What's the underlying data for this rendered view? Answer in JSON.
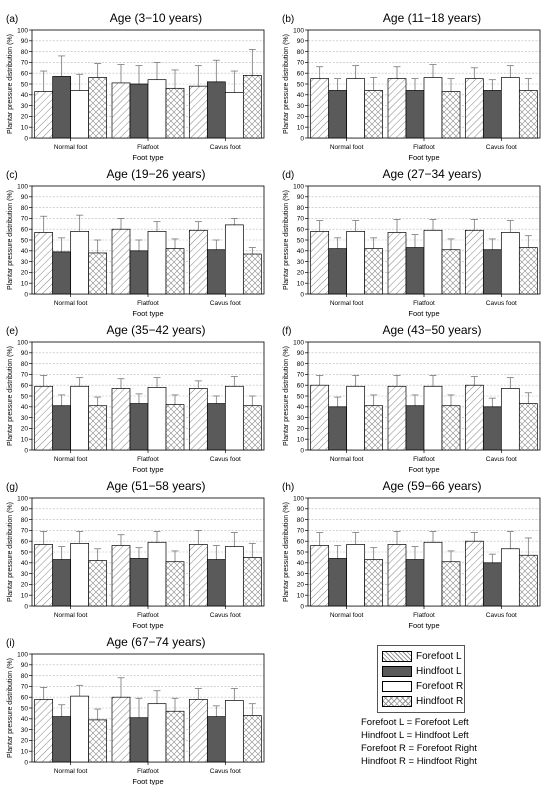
{
  "chart_data": [
    {
      "type": "bar",
      "panel_label": "(a)",
      "title": "Age (3−10 years)",
      "xlabel": "Foot type",
      "ylabel": "Plantar pressure distribution (%)",
      "ylim": [
        0,
        100
      ],
      "ytick_step": 10,
      "categories": [
        "Normal foot",
        "Flatfoot",
        "Cavus foot"
      ],
      "series": [
        {
          "name": "Forefoot L",
          "values": [
            43,
            51,
            48
          ],
          "errors": [
            19,
            17,
            19
          ]
        },
        {
          "name": "Hindfoot L",
          "values": [
            57,
            50,
            52
          ],
          "errors": [
            19,
            17,
            20
          ]
        },
        {
          "name": "Forefoot R",
          "values": [
            44,
            54,
            42
          ],
          "errors": [
            15,
            16,
            20
          ]
        },
        {
          "name": "Hindfoot R",
          "values": [
            56,
            46,
            58
          ],
          "errors": [
            13,
            17,
            24
          ]
        }
      ]
    },
    {
      "type": "bar",
      "panel_label": "(b)",
      "title": "Age (11−18 years)",
      "xlabel": "Foot type",
      "ylabel": "Plantar pressure distribution (%)",
      "ylim": [
        0,
        100
      ],
      "ytick_step": 10,
      "categories": [
        "Normal foot",
        "Flatfoot",
        "Cavus foot"
      ],
      "series": [
        {
          "name": "Forefoot L",
          "values": [
            55,
            55,
            55
          ],
          "errors": [
            11,
            11,
            10
          ]
        },
        {
          "name": "Hindfoot L",
          "values": [
            44,
            44,
            44
          ],
          "errors": [
            11,
            11,
            10
          ]
        },
        {
          "name": "Forefoot R",
          "values": [
            55,
            56,
            56
          ],
          "errors": [
            12,
            12,
            11
          ]
        },
        {
          "name": "Hindfoot R",
          "values": [
            44,
            43,
            44
          ],
          "errors": [
            12,
            12,
            11
          ]
        }
      ]
    },
    {
      "type": "bar",
      "panel_label": "(c)",
      "title": "Age (19−26 years)",
      "xlabel": "Foot type",
      "ylabel": "Plantar pressure distribution (%)",
      "ylim": [
        0,
        100
      ],
      "ytick_step": 10,
      "categories": [
        "Normal foot",
        "Flatfoot",
        "Cavus foot"
      ],
      "series": [
        {
          "name": "Forefoot L",
          "values": [
            57,
            60,
            59
          ],
          "errors": [
            15,
            10,
            8
          ]
        },
        {
          "name": "Hindfoot L",
          "values": [
            39,
            40,
            41
          ],
          "errors": [
            13,
            10,
            9
          ]
        },
        {
          "name": "Forefoot R",
          "values": [
            58,
            58,
            64
          ],
          "errors": [
            15,
            9,
            6
          ]
        },
        {
          "name": "Hindfoot R",
          "values": [
            38,
            42,
            37
          ],
          "errors": [
            12,
            9,
            6
          ]
        }
      ]
    },
    {
      "type": "bar",
      "panel_label": "(d)",
      "title": "Age (27−34 years)",
      "xlabel": "Foot type",
      "ylabel": "Plantar pressure distribution (%)",
      "ylim": [
        0,
        100
      ],
      "ytick_step": 10,
      "categories": [
        "Normal foot",
        "Flatfoot",
        "Cavus foot"
      ],
      "series": [
        {
          "name": "Forefoot L",
          "values": [
            58,
            57,
            59
          ],
          "errors": [
            10,
            12,
            10
          ]
        },
        {
          "name": "Hindfoot L",
          "values": [
            42,
            43,
            41
          ],
          "errors": [
            10,
            12,
            10
          ]
        },
        {
          "name": "Forefoot R",
          "values": [
            58,
            59,
            57
          ],
          "errors": [
            10,
            10,
            11
          ]
        },
        {
          "name": "Hindfoot R",
          "values": [
            42,
            41,
            43
          ],
          "errors": [
            10,
            10,
            11
          ]
        }
      ]
    },
    {
      "type": "bar",
      "panel_label": "(e)",
      "title": "Age (35−42 years)",
      "xlabel": "Foot type",
      "ylabel": "Plantar pressure distribution (%)",
      "ylim": [
        0,
        100
      ],
      "ytick_step": 10,
      "categories": [
        "Normal foot",
        "Flatfoot",
        "Cavus foot"
      ],
      "series": [
        {
          "name": "Forefoot L",
          "values": [
            59,
            57,
            57
          ],
          "errors": [
            10,
            9,
            7
          ]
        },
        {
          "name": "Hindfoot L",
          "values": [
            41,
            43,
            43
          ],
          "errors": [
            10,
            9,
            7
          ]
        },
        {
          "name": "Forefoot R",
          "values": [
            59,
            58,
            59
          ],
          "errors": [
            8,
            9,
            9
          ]
        },
        {
          "name": "Hindfoot R",
          "values": [
            41,
            42,
            41
          ],
          "errors": [
            8,
            9,
            9
          ]
        }
      ]
    },
    {
      "type": "bar",
      "panel_label": "(f)",
      "title": "Age (43−50 years)",
      "xlabel": "Foot type",
      "ylabel": "Plantar pressure distribution (%)",
      "ylim": [
        0,
        100
      ],
      "ytick_step": 10,
      "categories": [
        "Normal foot",
        "Flatfoot",
        "Cavus foot"
      ],
      "series": [
        {
          "name": "Forefoot L",
          "values": [
            60,
            59,
            60
          ],
          "errors": [
            9,
            10,
            8
          ]
        },
        {
          "name": "Hindfoot L",
          "values": [
            40,
            41,
            40
          ],
          "errors": [
            9,
            10,
            8
          ]
        },
        {
          "name": "Forefoot R",
          "values": [
            59,
            59,
            57
          ],
          "errors": [
            10,
            10,
            10
          ]
        },
        {
          "name": "Hindfoot R",
          "values": [
            41,
            41,
            43
          ],
          "errors": [
            10,
            10,
            10
          ]
        }
      ]
    },
    {
      "type": "bar",
      "panel_label": "(g)",
      "title": "Age (51−58 years)",
      "xlabel": "Foot type",
      "ylabel": "Plantar pressure distribution (%)",
      "ylim": [
        0,
        100
      ],
      "ytick_step": 10,
      "categories": [
        "Normal foot",
        "Flatfoot",
        "Cavus foot"
      ],
      "series": [
        {
          "name": "Forefoot L",
          "values": [
            57,
            56,
            57
          ],
          "errors": [
            12,
            10,
            13
          ]
        },
        {
          "name": "Hindfoot L",
          "values": [
            43,
            44,
            43
          ],
          "errors": [
            12,
            10,
            13
          ]
        },
        {
          "name": "Forefoot R",
          "values": [
            58,
            59,
            55
          ],
          "errors": [
            11,
            10,
            13
          ]
        },
        {
          "name": "Hindfoot R",
          "values": [
            42,
            41,
            45
          ],
          "errors": [
            11,
            10,
            13
          ]
        }
      ]
    },
    {
      "type": "bar",
      "panel_label": "(h)",
      "title": "Age (59−66 years)",
      "xlabel": "Foot type",
      "ylabel": "Plantar pressure distribution (%)",
      "ylim": [
        0,
        100
      ],
      "ytick_step": 10,
      "categories": [
        "Normal foot",
        "Flatfoot",
        "Cavus foot"
      ],
      "series": [
        {
          "name": "Forefoot L",
          "values": [
            56,
            57,
            60
          ],
          "errors": [
            12,
            12,
            8
          ]
        },
        {
          "name": "Hindfoot L",
          "values": [
            44,
            43,
            40
          ],
          "errors": [
            12,
            12,
            8
          ]
        },
        {
          "name": "Forefoot R",
          "values": [
            57,
            59,
            53
          ],
          "errors": [
            11,
            10,
            16
          ]
        },
        {
          "name": "Hindfoot R",
          "values": [
            43,
            41,
            47
          ],
          "errors": [
            11,
            10,
            16
          ]
        }
      ]
    },
    {
      "type": "bar",
      "panel_label": "(i)",
      "title": "Age (67−74 years)",
      "xlabel": "Foot type",
      "ylabel": "Plantar pressure distribution (%)",
      "ylim": [
        0,
        100
      ],
      "ytick_step": 10,
      "categories": [
        "Normal foot",
        "Flatfoot",
        "Cavus foot"
      ],
      "series": [
        {
          "name": "Forefoot L",
          "values": [
            58,
            60,
            58
          ],
          "errors": [
            11,
            18,
            10
          ]
        },
        {
          "name": "Hindfoot L",
          "values": [
            42,
            41,
            42
          ],
          "errors": [
            11,
            18,
            10
          ]
        },
        {
          "name": "Forefoot R",
          "values": [
            61,
            54,
            57
          ],
          "errors": [
            10,
            12,
            11
          ]
        },
        {
          "name": "Hindfoot R",
          "values": [
            39,
            47,
            43
          ],
          "errors": [
            10,
            12,
            11
          ]
        }
      ]
    }
  ],
  "legend": {
    "items": [
      "Forefoot L",
      "Hindfoot L",
      "Forefoot R",
      "Hindfoot R"
    ],
    "abbreviations": [
      "Forefoot L = Forefoot Left",
      "Hindfoot L = Hindfoot Left",
      "Forefoot R = Forefoot Right",
      "Hindfoot R = Hindfoot Right"
    ]
  },
  "colors": {
    "forefoot_l": "#ffffff",
    "hindfoot_l": "#5a5a5a",
    "forefoot_r": "#ffffff",
    "hindfoot_r": "#ffffff",
    "grid": "#b8b8b8",
    "error_bar": "#777777"
  }
}
